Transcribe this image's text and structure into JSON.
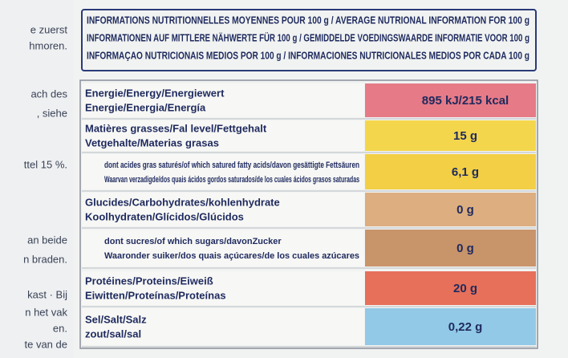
{
  "header": {
    "lines": [
      "INFORMATIONS NUTRITIONNELLES MOYENNES POUR 100 g / AVERAGE NUTRIONAL INFORMATION FOR 100 g",
      "INFORMATIONEN AUF MITTLERE NÄHWERTE FÜR 100 g / GEMIDDELDE VOEDINGSWAARDE INFORMATIE VOOR 100 g",
      "INFORMAÇAO NUTRICIONAIS MEDIOS POR 100 g / INFORMACIONES NUTRICIONALES MEDIOS POR CADA 100 g"
    ]
  },
  "side_text": [
    "e zuerst",
    "hmoren.",
    "ach des",
    ", siehe",
    "ttel 15 %.",
    "an beide",
    "n braden.",
    "kast · Bij",
    "n het vak",
    "en.",
    "te van de"
  ],
  "table": {
    "rows": [
      {
        "label": [
          "Energie/Energy/Energiewert",
          "Energie/Energia/Energía"
        ],
        "value": "895 kJ/215 kcal",
        "color": "#e67a86",
        "sub": false
      },
      {
        "label": [
          "Matières grasses/Fal level/Fettgehalt",
          "Vetgehalte/Materias grasas"
        ],
        "value": "15 g",
        "color": "#f4d64c",
        "sub": false
      },
      {
        "label": [
          "dont acides gras saturés/of which satured fatty acids/davon gesättigte Fettsäuren",
          "Waarvan verzadigde/dos quais ácidos gordos saturados/de los cuales ácidos grasos saturadas"
        ],
        "value": "6,1 g",
        "color": "#f2cf45",
        "sub": true
      },
      {
        "label": [
          "Glucides/Carbohydrates/kohlenhydrate",
          "Koolhydraten/Glícidos/Glúcidos"
        ],
        "value": "0 g",
        "color": "#dcae80",
        "sub": false
      },
      {
        "label": [
          "dont sucres/of which sugars/davonZucker",
          "Waaronder suiker/dos quais açúcares/de los cuales azúcares"
        ],
        "value": "0 g",
        "color": "#c8946a",
        "sub": true
      },
      {
        "label": [
          "Protéines/Proteins/Eiweiß",
          "Eiwitten/Proteínas/Proteínas"
        ],
        "value": "20 g",
        "color": "#e6705a",
        "sub": false
      },
      {
        "label": [
          "Sel/Salt/Salz",
          "zout/sal/sal"
        ],
        "value": "0,22 g",
        "color": "#92c9e6",
        "sub": false
      }
    ]
  }
}
